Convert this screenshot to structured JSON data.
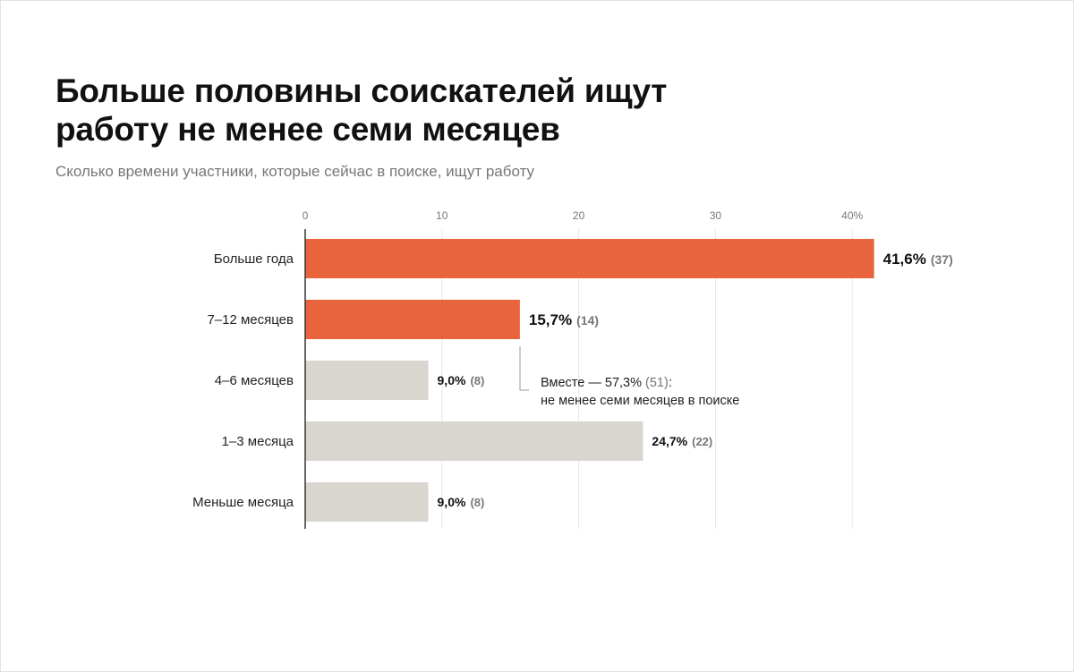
{
  "header": {
    "title": "Больше половины соискателей ищут работу не менее семи месяцев",
    "subtitle": "Сколько времени участники, которые сейчас в поиске, ищут работу"
  },
  "chart_data": {
    "type": "bar",
    "orientation": "horizontal",
    "categories": [
      "Больше года",
      "7–12 месяцев",
      "4–6 месяцев",
      "1–3 месяца",
      "Меньше месяца"
    ],
    "values": [
      41.6,
      15.7,
      9.0,
      24.7,
      9.0
    ],
    "value_labels": [
      "41,6%",
      "15,7%",
      "9,0%",
      "24,7%",
      "9,0%"
    ],
    "count_labels": [
      "(37)",
      "(14)",
      "(8)",
      "(22)",
      "(8)"
    ],
    "highlighted": [
      true,
      true,
      false,
      false,
      false
    ],
    "xlim": [
      0,
      42
    ],
    "xticks": [
      0,
      10,
      20,
      30,
      40
    ],
    "xtick_labels": [
      "0",
      "10",
      "20",
      "30",
      "40%"
    ],
    "grid": true,
    "colors": {
      "highlight": "#e8643c",
      "muted": "#d8d6cf",
      "grid": "#e6e6e6",
      "axis": "#333333"
    },
    "annotation": {
      "line1": "Вместе — 57,3%",
      "line1_count": "(51)",
      "line1_suffix": ":",
      "line2": "не менее семи месяцев в поиске"
    }
  }
}
